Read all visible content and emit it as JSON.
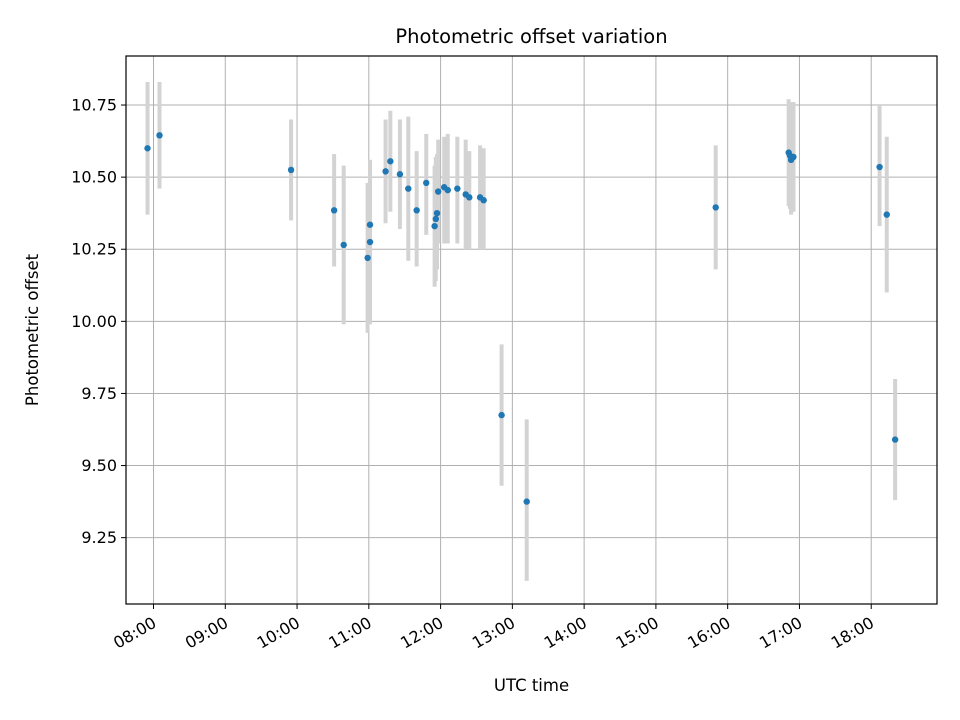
{
  "chart_data": {
    "type": "scatter",
    "title": "Photometric offset variation",
    "xlabel": "UTC time",
    "ylabel": "Photometric offset",
    "xlim": [
      "07:37",
      "18:55"
    ],
    "ylim": [
      9.02,
      10.92
    ],
    "x_ticks": [
      "08:00",
      "09:00",
      "10:00",
      "11:00",
      "12:00",
      "13:00",
      "14:00",
      "15:00",
      "16:00",
      "17:00",
      "18:00"
    ],
    "y_ticks": [
      9.25,
      9.5,
      9.75,
      10.0,
      10.25,
      10.5,
      10.75
    ],
    "y_tick_labels": [
      "9.25",
      "9.50",
      "9.75",
      "10.00",
      "10.25",
      "10.50",
      "10.75"
    ],
    "grid": true,
    "colors": {
      "point": "#1f77b4",
      "errorbar": "#d3d3d3",
      "grid": "#b0b0b0"
    },
    "points": [
      {
        "x": "07:55",
        "y": 10.6,
        "ylo": 10.37,
        "yhi": 10.83
      },
      {
        "x": "08:05",
        "y": 10.645,
        "ylo": 10.46,
        "yhi": 10.83
      },
      {
        "x": "09:55",
        "y": 10.525,
        "ylo": 10.35,
        "yhi": 10.7
      },
      {
        "x": "10:31",
        "y": 10.385,
        "ylo": 10.19,
        "yhi": 10.58
      },
      {
        "x": "10:39",
        "y": 10.265,
        "ylo": 9.99,
        "yhi": 10.54
      },
      {
        "x": "10:59",
        "y": 10.22,
        "ylo": 9.96,
        "yhi": 10.48
      },
      {
        "x": "11:01",
        "y": 10.275,
        "ylo": 9.99,
        "yhi": 10.56
      },
      {
        "x": "11:01",
        "y": 10.335,
        "ylo": 10.05,
        "yhi": 10.56
      },
      {
        "x": "11:14",
        "y": 10.52,
        "ylo": 10.34,
        "yhi": 10.7
      },
      {
        "x": "11:18",
        "y": 10.555,
        "ylo": 10.38,
        "yhi": 10.73
      },
      {
        "x": "11:26",
        "y": 10.51,
        "ylo": 10.32,
        "yhi": 10.7
      },
      {
        "x": "11:33",
        "y": 10.46,
        "ylo": 10.21,
        "yhi": 10.71
      },
      {
        "x": "11:40",
        "y": 10.385,
        "ylo": 10.19,
        "yhi": 10.59
      },
      {
        "x": "11:48",
        "y": 10.48,
        "ylo": 10.3,
        "yhi": 10.65
      },
      {
        "x": "11:55",
        "y": 10.33,
        "ylo": 10.12,
        "yhi": 10.54
      },
      {
        "x": "11:56",
        "y": 10.355,
        "ylo": 10.14,
        "yhi": 10.57
      },
      {
        "x": "11:57",
        "y": 10.375,
        "ylo": 10.18,
        "yhi": 10.58
      },
      {
        "x": "11:58",
        "y": 10.45,
        "ylo": 10.27,
        "yhi": 10.63
      },
      {
        "x": "12:03",
        "y": 10.465,
        "ylo": 10.27,
        "yhi": 10.64
      },
      {
        "x": "12:06",
        "y": 10.455,
        "ylo": 10.27,
        "yhi": 10.65
      },
      {
        "x": "12:14",
        "y": 10.46,
        "ylo": 10.27,
        "yhi": 10.64
      },
      {
        "x": "12:21",
        "y": 10.44,
        "ylo": 10.25,
        "yhi": 10.63
      },
      {
        "x": "12:24",
        "y": 10.43,
        "ylo": 10.25,
        "yhi": 10.59
      },
      {
        "x": "12:33",
        "y": 10.43,
        "ylo": 10.25,
        "yhi": 10.61
      },
      {
        "x": "12:36",
        "y": 10.42,
        "ylo": 10.25,
        "yhi": 10.6
      },
      {
        "x": "12:51",
        "y": 9.675,
        "ylo": 9.43,
        "yhi": 9.92
      },
      {
        "x": "13:12",
        "y": 9.375,
        "ylo": 9.1,
        "yhi": 9.66
      },
      {
        "x": "15:50",
        "y": 10.395,
        "ylo": 10.18,
        "yhi": 10.61
      },
      {
        "x": "16:51",
        "y": 10.585,
        "ylo": 10.4,
        "yhi": 10.77
      },
      {
        "x": "16:52",
        "y": 10.575,
        "ylo": 10.39,
        "yhi": 10.76
      },
      {
        "x": "16:53",
        "y": 10.56,
        "ylo": 10.37,
        "yhi": 10.75
      },
      {
        "x": "16:55",
        "y": 10.57,
        "ylo": 10.38,
        "yhi": 10.76
      },
      {
        "x": "18:07",
        "y": 10.535,
        "ylo": 10.33,
        "yhi": 10.75
      },
      {
        "x": "18:13",
        "y": 10.37,
        "ylo": 10.1,
        "yhi": 10.64
      },
      {
        "x": "18:20",
        "y": 9.59,
        "ylo": 9.38,
        "yhi": 9.8
      }
    ]
  }
}
